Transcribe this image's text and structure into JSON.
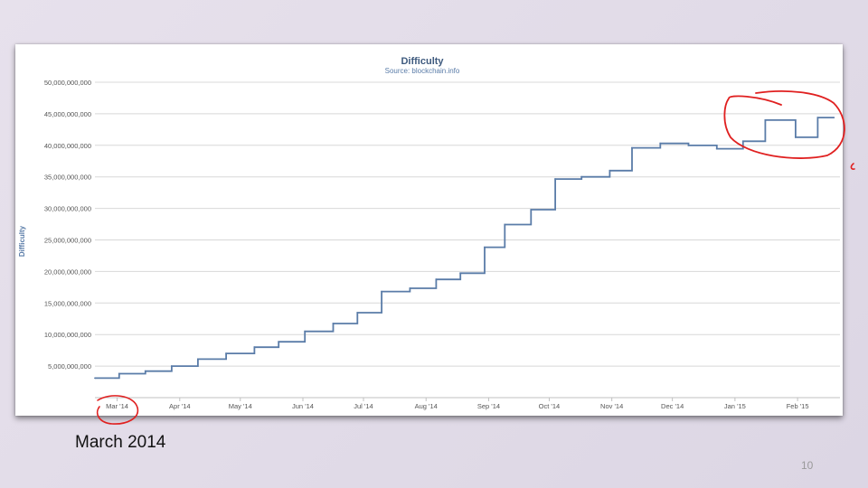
{
  "slide": {
    "caption": "March 2014",
    "page_number": "10"
  },
  "colors": {
    "line": "#5a7ca8",
    "grid": "#d8d8d8",
    "title": "#3e5a7e",
    "axis_text": "#555555",
    "annotation": "#e02020"
  },
  "chart_data": {
    "type": "line",
    "title": "Difficulty",
    "subtitle": "Source: blockchain.info",
    "ylabel": "Difficulty",
    "xlabel": "",
    "xlim": [
      "2014-02-18",
      "2015-02-22"
    ],
    "ylim": [
      0,
      50000000000
    ],
    "grid": true,
    "legend": "none",
    "y_ticks": [
      {
        "value": 5000000000,
        "label": "5,000,000,000"
      },
      {
        "value": 10000000000,
        "label": "10,000,000,000"
      },
      {
        "value": 15000000000,
        "label": "15,000,000,000"
      },
      {
        "value": 20000000000,
        "label": "20,000,000,000"
      },
      {
        "value": 25000000000,
        "label": "25,000,000,000"
      },
      {
        "value": 30000000000,
        "label": "30,000,000,000"
      },
      {
        "value": 35000000000,
        "label": "35,000,000,000"
      },
      {
        "value": 40000000000,
        "label": "40,000,000,000"
      },
      {
        "value": 45000000000,
        "label": "45,000,000,000"
      },
      {
        "value": 50000000000,
        "label": "50,000,000,000"
      }
    ],
    "x_ticks": [
      {
        "date": "2014-03-01",
        "label": "Mar '14"
      },
      {
        "date": "2014-04-01",
        "label": "Apr '14"
      },
      {
        "date": "2014-05-01",
        "label": "May '14"
      },
      {
        "date": "2014-06-01",
        "label": "Jun '14"
      },
      {
        "date": "2014-07-01",
        "label": "Jul '14"
      },
      {
        "date": "2014-08-01",
        "label": "Aug '14"
      },
      {
        "date": "2014-09-01",
        "label": "Sep '14"
      },
      {
        "date": "2014-10-01",
        "label": "Oct '14"
      },
      {
        "date": "2014-11-01",
        "label": "Nov '14"
      },
      {
        "date": "2014-12-01",
        "label": "Dec '14"
      },
      {
        "date": "2015-01-01",
        "label": "Jan '15"
      },
      {
        "date": "2015-02-01",
        "label": "Feb '15"
      }
    ],
    "series": [
      {
        "points": [
          [
            "2014-02-18",
            3100000000
          ],
          [
            "2014-03-02",
            3800000000
          ],
          [
            "2014-03-15",
            4200000000
          ],
          [
            "2014-03-28",
            5000000000
          ],
          [
            "2014-04-10",
            6100000000
          ],
          [
            "2014-04-24",
            7000000000
          ],
          [
            "2014-05-08",
            8000000000
          ],
          [
            "2014-05-20",
            8850000000
          ],
          [
            "2014-06-02",
            10500000000
          ],
          [
            "2014-06-16",
            11750000000
          ],
          [
            "2014-06-28",
            13460000000
          ],
          [
            "2014-07-10",
            16820000000
          ],
          [
            "2014-07-24",
            17340000000
          ],
          [
            "2014-08-06",
            18740000000
          ],
          [
            "2014-08-18",
            19730000000
          ],
          [
            "2014-08-30",
            23840000000
          ],
          [
            "2014-09-09",
            27430000000
          ],
          [
            "2014-09-22",
            29800000000
          ],
          [
            "2014-10-04",
            34660000000
          ],
          [
            "2014-10-17",
            35000000000
          ],
          [
            "2014-10-31",
            35990000000
          ],
          [
            "2014-11-11",
            39600000000
          ],
          [
            "2014-11-25",
            40300000000
          ],
          [
            "2014-12-09",
            39990000000
          ],
          [
            "2014-12-23",
            39460000000
          ],
          [
            "2015-01-05",
            40640000000
          ],
          [
            "2015-01-16",
            44000000000
          ],
          [
            "2015-01-31",
            41270000000
          ],
          [
            "2015-02-11",
            44400000000
          ],
          [
            "2015-02-19",
            44400000000
          ]
        ]
      }
    ]
  }
}
